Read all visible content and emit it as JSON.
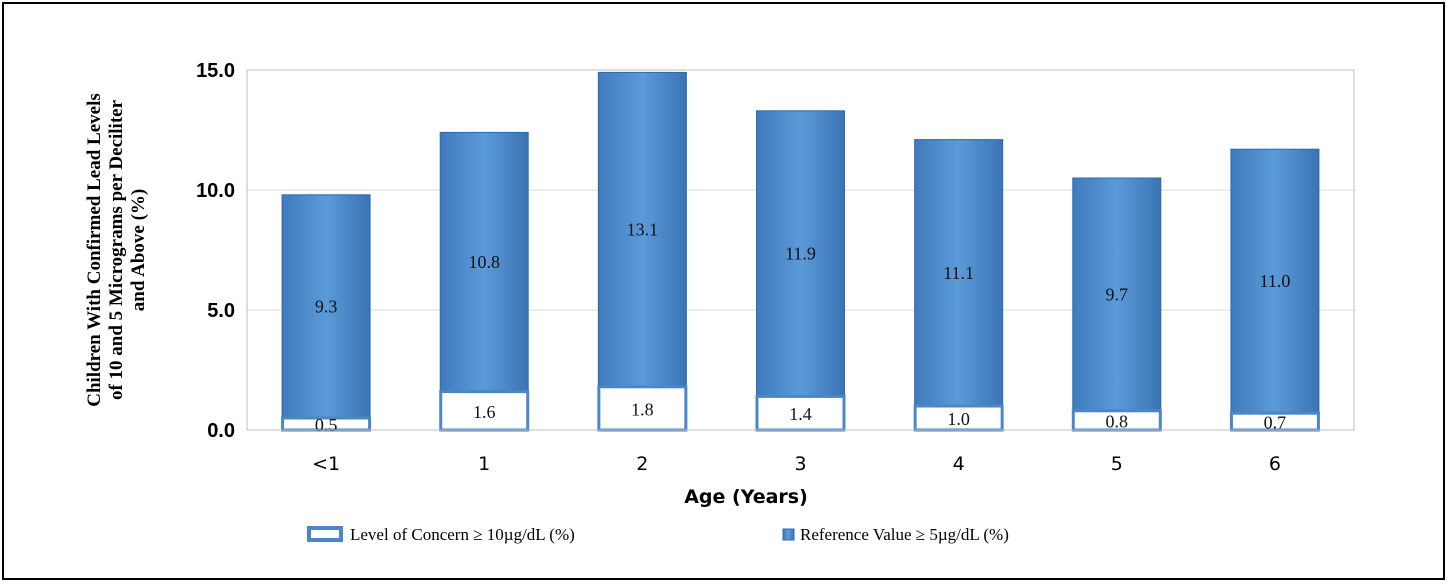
{
  "chart_data": {
    "type": "bar",
    "stacked": true,
    "categories": [
      "<1",
      "1",
      "2",
      "3",
      "4",
      "5",
      "6"
    ],
    "series": [
      {
        "name": "Level of Concern ≥ 10µg/dL (%)",
        "values": [
          0.5,
          1.6,
          1.8,
          1.4,
          1.0,
          0.8,
          0.7
        ]
      },
      {
        "name": "Reference Value ≥ 5µg/dL (%)",
        "values": [
          9.3,
          10.8,
          13.1,
          11.9,
          11.1,
          9.7,
          11.0
        ]
      }
    ],
    "xlabel": "Age (Years)",
    "ylabel_lines": [
      "Children With Confirmed Lead Levels",
      "of 10 and 5 Micrograms per Deciliter",
      "and Above (%)"
    ],
    "yticks": [
      "0.0",
      "5.0",
      "10.0",
      "15.0"
    ],
    "ylim": [
      0,
      15
    ],
    "grid": true,
    "legend_position": "bottom",
    "colors": {
      "bar": "#4f8fd0",
      "bar_dark": "#2f6aa8",
      "outline": "#4a86c8",
      "grid": "#d9d9d9"
    }
  }
}
